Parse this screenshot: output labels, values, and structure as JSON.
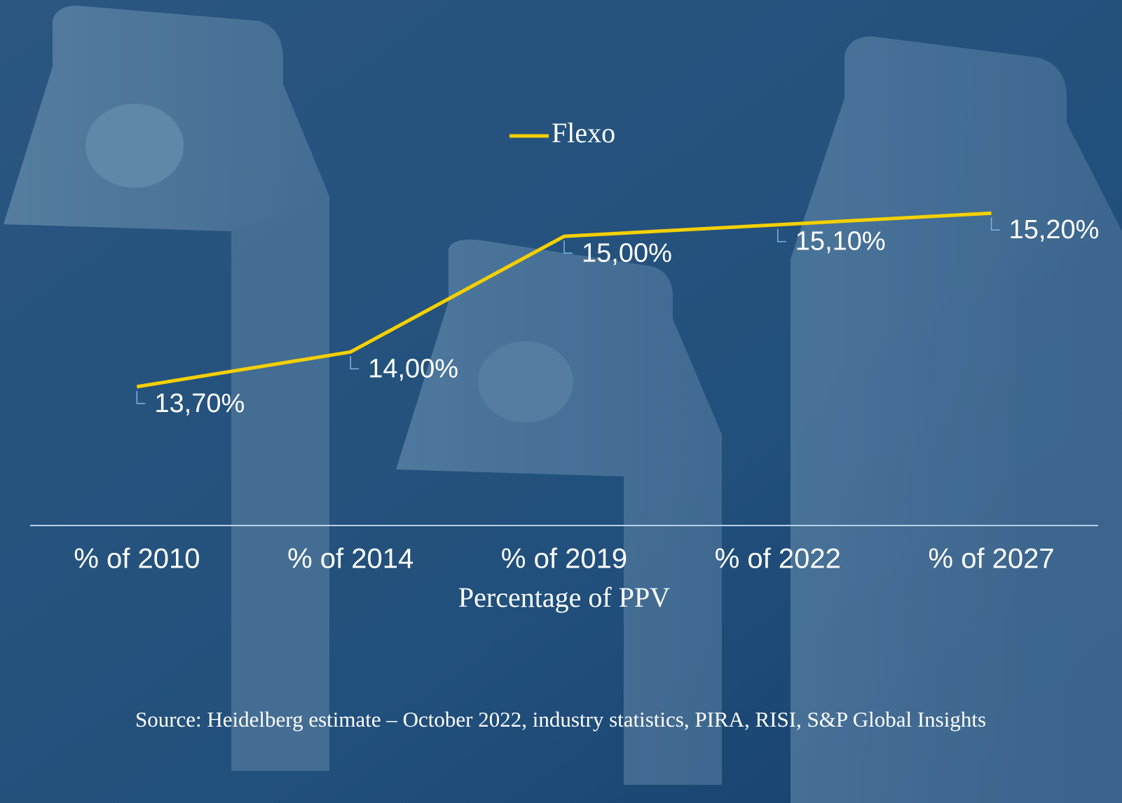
{
  "chart_data": {
    "type": "line",
    "categories": [
      "% of 2010",
      "% of 2014",
      "% of 2019",
      "% of 2022",
      "% of 2027"
    ],
    "series": [
      {
        "name": "Flexo",
        "color": "#f5d000",
        "values": [
          13.7,
          14.0,
          15.0,
          15.1,
          15.2
        ],
        "value_labels": [
          "13,70%",
          "14,00%",
          "15,00%",
          "15,10%",
          "15,20%"
        ]
      }
    ],
    "x_label": "Percentage of PPV",
    "source": "Source: Heidelberg estimate – October 2022, industry statistics, PIRA, RISI, S&P Global Insights",
    "ylim": [
      12.5,
      17
    ],
    "legend": "top"
  }
}
